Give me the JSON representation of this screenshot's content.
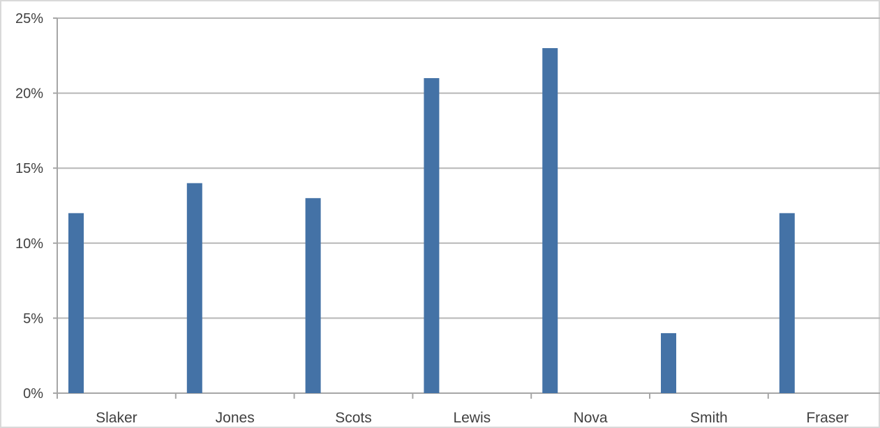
{
  "chart_data": {
    "type": "bar",
    "title": "",
    "xlabel": "",
    "ylabel": "",
    "categories": [
      "Slaker",
      "Jones",
      "Scots",
      "Lewis",
      "Nova",
      "Smith",
      "Fraser"
    ],
    "series": [
      {
        "values": [
          12,
          14,
          13,
          21,
          23,
          4,
          12
        ]
      }
    ],
    "ylim": [
      0,
      25
    ],
    "yticks": [
      0,
      5,
      10,
      15,
      20,
      25
    ],
    "ytick_labels": [
      "0%",
      "5%",
      "10%",
      "15%",
      "20%",
      "25%"
    ],
    "grid": true,
    "legend": "none",
    "colors": {
      "bar": "#4472a6"
    }
  }
}
